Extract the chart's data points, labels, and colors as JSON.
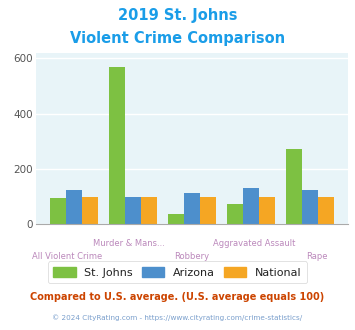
{
  "title_line1": "2019 St. Johns",
  "title_line2": "Violent Crime Comparison",
  "categories": [
    "All Violent Crime",
    "Murder & Mans...",
    "Robbery",
    "Aggravated Assault",
    "Rape"
  ],
  "st_johns": [
    95,
    567,
    37,
    72,
    272
  ],
  "arizona": [
    125,
    100,
    112,
    130,
    125
  ],
  "national": [
    100,
    100,
    100,
    100,
    100
  ],
  "color_st_johns": "#7dc142",
  "color_arizona": "#4d8fcc",
  "color_national": "#f5a623",
  "ylim": [
    0,
    620
  ],
  "yticks": [
    0,
    200,
    400,
    600
  ],
  "background_color": "#e8f4f8",
  "title_color": "#1a9de8",
  "xlabel_color": "#bb88bb",
  "footer_text": "Compared to U.S. average. (U.S. average equals 100)",
  "footer_color": "#cc4400",
  "copyright_text": "© 2024 CityRating.com - https://www.cityrating.com/crime-statistics/",
  "copyright_color": "#7a9fcc",
  "legend_labels": [
    "St. Johns",
    "Arizona",
    "National"
  ],
  "grid_color": "#ffffff"
}
